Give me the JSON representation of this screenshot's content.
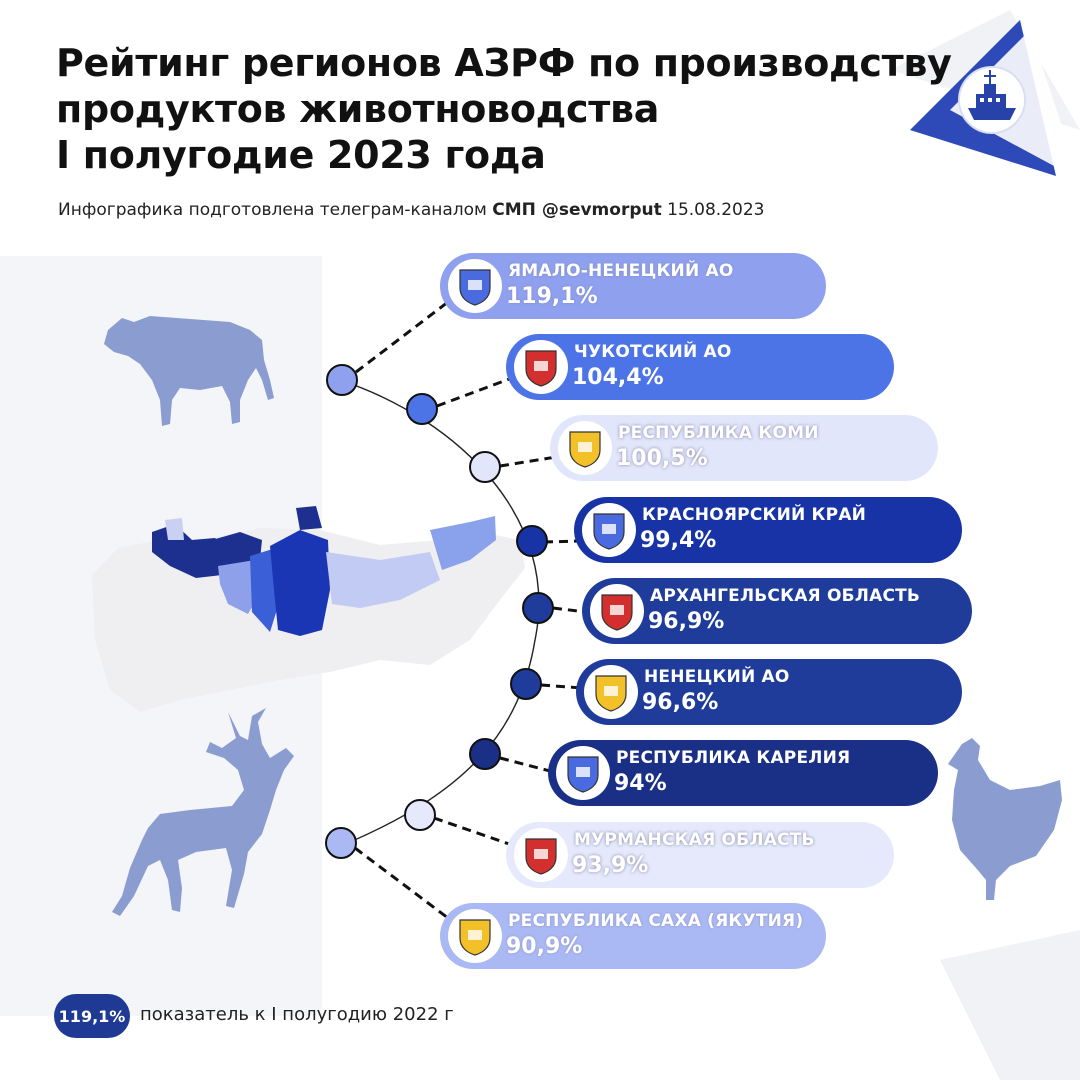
{
  "title_lines": [
    "Рейтинг регионов АЗРФ по производству",
    "продуктов животноводства",
    "I полугодие 2023 года"
  ],
  "subtitle": {
    "prefix": "Инфографика подготовлена телеграм-каналом",
    "channel": "СМП @sevmorput",
    "date": "15.08.2023"
  },
  "regions": [
    {
      "name": "ЯМАЛО-НЕНЕЦКИЙ АО",
      "value": "119,1%",
      "color": "#8ea0ee"
    },
    {
      "name": "ЧУКОТСКИЙ АО",
      "value": "104,4%",
      "color": "#4d74e6"
    },
    {
      "name": "РЕСПУБЛИКА КОМИ",
      "value": "100,5%",
      "color": "#e2e6fb"
    },
    {
      "name": "КРАСНОЯРСКИЙ КРАЙ",
      "value": "99,4%",
      "color": "#1733a6"
    },
    {
      "name": "АРХАНГЕЛЬСКАЯ ОБЛАСТЬ",
      "value": "96,9%",
      "color": "#1f3c9b"
    },
    {
      "name": "НЕНЕЦКИЙ АО",
      "value": "96,6%",
      "color": "#1f3c9b"
    },
    {
      "name": "РЕСПУБЛИКА КАРЕЛИЯ",
      "value": "94%",
      "color": "#1a2f86"
    },
    {
      "name": "МУРМАНСКАЯ ОБЛАСТЬ",
      "value": "93,9%",
      "color": "#e5e9fb"
    },
    {
      "name": "РЕСПУБЛИКА САХА (ЯКУТИЯ)",
      "value": "90,9%",
      "color": "#aab8f3"
    }
  ],
  "legend": {
    "badge": "119,1%",
    "text": "показатель к I полугодию 2022 г"
  },
  "icons": [
    "cow-icon",
    "deer-icon",
    "chicken-icon",
    "icebreaker-logo-icon",
    "russia-map"
  ]
}
